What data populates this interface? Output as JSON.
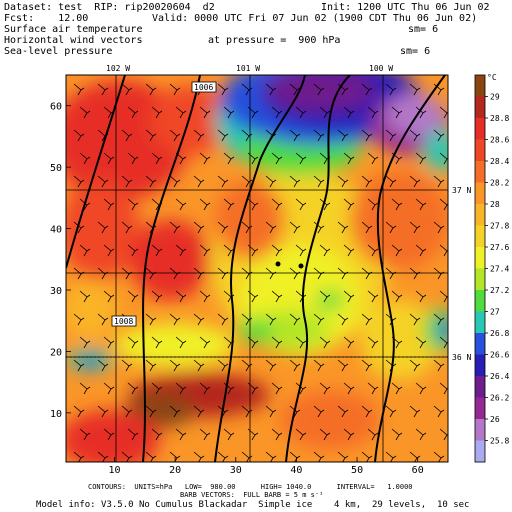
{
  "header": {
    "dataset": "Dataset: test  RIP: rip20020604  d2",
    "init": "Init: 1200 UTC Thu 06 Jun 02",
    "fcst": "Fcst:    12.00",
    "valid": "Valid: 0000 UTC Fri 07 Jun 02 (1900 CDT Thu 06 Jun 02)",
    "line3": "Surface air temperature",
    "sm1": "sm= 6",
    "line4": "Horizontal wind vectors",
    "pressure": "at pressure =  900 hPa",
    "line5": "Sea-level pressure",
    "sm2": "sm= 6"
  },
  "map": {
    "lon_labels": [
      "102 W",
      "101 W",
      "100 W"
    ],
    "lat_labels": [
      "37 N",
      "36 N"
    ],
    "x_ticks": [
      "10",
      "20",
      "30",
      "40",
      "50",
      "60"
    ],
    "y_ticks": [
      "10",
      "20",
      "30",
      "40",
      "50",
      "60"
    ],
    "contour_labels": [
      "1006",
      "1008"
    ]
  },
  "colorbar": {
    "unit": "°C",
    "labels": [
      "29",
      "28.8",
      "28.6",
      "28.4",
      "28.2",
      "28",
      "27.8",
      "27.6",
      "27.4",
      "27.2",
      "27",
      "26.8",
      "26.6",
      "26.4",
      "26.2",
      "26",
      "25.8"
    ],
    "colors": [
      "#8b4513",
      "#b4281e",
      "#e62d28",
      "#f04628",
      "#f56e28",
      "#fa9628",
      "#fab428",
      "#f5d228",
      "#f0f028",
      "#b4e628",
      "#50dc3c",
      "#28c8b4",
      "#2850dc",
      "#281eb4",
      "#6e1e8c",
      "#962896",
      "#b478c8",
      "#aaaaf0"
    ]
  },
  "footer": {
    "contours": "CONTOURS:  UNITS=hPa   LOW=  980.00      HIGH= 1040.0      INTERVAL=   1.0000",
    "barbs": "BARB VECTORS:  FULL BARB = 5 m s⁻¹",
    "model": "Model info: V3.5.0 No Cumulus Blackadar  Simple ice    4 km,  29 levels,  10 sec"
  }
}
